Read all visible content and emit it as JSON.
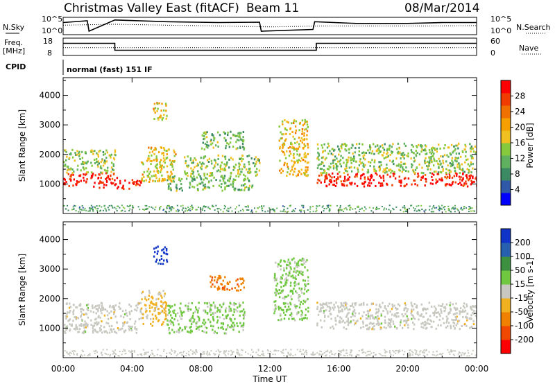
{
  "header": {
    "title": "Christmas Valley East (fitACF)",
    "beam": "Beam 11",
    "date": "08/Mar/2014"
  },
  "status_panels": {
    "nsky_label": "N.Sky",
    "nsearch_label": "N.Search",
    "noise_ticks": [
      "10^5",
      "10^0"
    ],
    "noise_right_ticks": [
      "10^5",
      "10^0"
    ],
    "freq_label_1": "Freq.",
    "freq_label_2": "[MHz]",
    "freq_ticks": [
      "18",
      "8"
    ],
    "nave_label": "Nave",
    "nave_ticks": [
      "60",
      "0"
    ],
    "cpid_label": "CPID",
    "cpid_text": "normal (fast) 151 IF"
  },
  "colors": {
    "power_scale": [
      "#0000ff",
      "#2f59a8",
      "#3c8a64",
      "#5fb15f",
      "#86c93c",
      "#f0c020",
      "#f5a000",
      "#f07000",
      "#f03c00",
      "#ff0000"
    ],
    "velocity_scale": [
      "#1034c8",
      "#2860b0",
      "#3c9040",
      "#70c840",
      "#c8c8c0",
      "#f0b020",
      "#f08000",
      "#f04800",
      "#ff0000"
    ]
  },
  "chart_data": [
    {
      "type": "heatmap",
      "panel": "power",
      "ylabel": "Slant Range [km]",
      "ylim": [
        0,
        4600
      ],
      "yticks": [
        1000,
        2000,
        3000,
        4000
      ],
      "xlim": [
        0,
        24
      ],
      "colorbar_label": "Power [dB]",
      "colorbar_ticks": [
        "4",
        "8",
        "12",
        "16",
        "20",
        "24",
        "28"
      ],
      "colorbar_range": [
        0,
        32
      ],
      "data_gaps_hours": [
        1.48,
        11.45,
        14.55,
        20.08
      ],
      "features": [
        {
          "t0": 0,
          "t1": 3.1,
          "r0": 900,
          "r1": 1400,
          "value": 30
        },
        {
          "t0": 3.1,
          "t1": 4.5,
          "r0": 850,
          "r1": 1200,
          "value": 30
        },
        {
          "t0": 0,
          "t1": 3.0,
          "r0": 1400,
          "r1": 2200,
          "value": 14
        },
        {
          "t0": 4.5,
          "t1": 6.5,
          "r0": 1100,
          "r1": 2300,
          "value": 18
        },
        {
          "t0": 5.2,
          "t1": 6.0,
          "r0": 3200,
          "r1": 3800,
          "value": 18
        },
        {
          "t0": 6.0,
          "t1": 11.0,
          "r0": 800,
          "r1": 1300,
          "value": 12
        },
        {
          "t0": 7.0,
          "t1": 11.4,
          "r0": 1300,
          "r1": 2000,
          "value": 14
        },
        {
          "t0": 8.0,
          "t1": 10.5,
          "r0": 2200,
          "r1": 2800,
          "value": 12
        },
        {
          "t0": 12.5,
          "t1": 14.2,
          "r0": 1300,
          "r1": 3200,
          "value": 18
        },
        {
          "t0": 14.7,
          "t1": 24,
          "r0": 950,
          "r1": 1400,
          "value": 30
        },
        {
          "t0": 14.7,
          "t1": 24,
          "r0": 1400,
          "r1": 2400,
          "value": 14
        }
      ]
    },
    {
      "type": "heatmap",
      "panel": "velocity",
      "ylabel": "Slant Range [km]",
      "ylim": [
        0,
        4600
      ],
      "yticks": [
        1000,
        2000,
        3000,
        4000
      ],
      "xlim": [
        0,
        24
      ],
      "xlabel": "Time UT",
      "xticks": [
        "00:00",
        "04:00",
        "08:00",
        "12:00",
        "16:00",
        "20:00",
        "00:00"
      ],
      "xtick_hours": [
        0,
        4,
        8,
        12,
        16,
        20,
        24
      ],
      "colorbar_label": "Velocity [m s-1]",
      "colorbar_ticks": [
        "200",
        "100",
        "50",
        "15",
        "-15",
        "-50",
        "-100",
        "-200"
      ],
      "colorbar_range": [
        -250,
        250
      ],
      "features": [
        {
          "t0": 0,
          "t1": 4.5,
          "r0": 850,
          "r1": 1900,
          "value": 0
        },
        {
          "t0": 4.5,
          "t1": 6.0,
          "r0": 1100,
          "r1": 2300,
          "value": -40
        },
        {
          "t0": 5.2,
          "t1": 6.0,
          "r0": 3200,
          "r1": 3800,
          "value": 220
        },
        {
          "t0": 6.0,
          "t1": 10.5,
          "r0": 850,
          "r1": 1900,
          "value": 40
        },
        {
          "t0": 8.5,
          "t1": 10.5,
          "r0": 2300,
          "r1": 2800,
          "value": -120
        },
        {
          "t0": 12.2,
          "t1": 14.2,
          "r0": 1300,
          "r1": 3400,
          "value": 45
        },
        {
          "t0": 14.7,
          "t1": 24,
          "r0": 1000,
          "r1": 1900,
          "value": 0
        }
      ]
    },
    {
      "type": "line",
      "panel": "noise",
      "series": [
        {
          "name": "N.Sky",
          "x": [
            0,
            1.4,
            1.5,
            3,
            6,
            9,
            11.4,
            11.5,
            14.5,
            14.6,
            17,
            20,
            22,
            24
          ],
          "y": [
            0.7,
            0.8,
            0.2,
            0.85,
            0.75,
            0.7,
            0.72,
            0.2,
            0.3,
            0.75,
            0.65,
            0.65,
            0.7,
            0.7
          ]
        },
        {
          "name": "N.Search",
          "x": [
            0,
            3,
            6,
            9,
            12,
            15,
            18,
            21,
            24
          ],
          "y": [
            0.55,
            0.6,
            0.55,
            0.5,
            0.45,
            0.5,
            0.5,
            0.5,
            0.52
          ]
        }
      ]
    },
    {
      "type": "line",
      "panel": "frequency",
      "series": [
        {
          "name": "Freq.",
          "x": [
            0,
            3.0,
            3.0,
            14.7,
            14.7,
            24
          ],
          "y": [
            0.7,
            0.7,
            0.3,
            0.3,
            0.7,
            0.7
          ]
        },
        {
          "name": "Nave",
          "x": [
            0,
            3,
            14.7,
            24
          ],
          "y": [
            0.45,
            0.45,
            0.45,
            0.45
          ]
        }
      ]
    }
  ]
}
